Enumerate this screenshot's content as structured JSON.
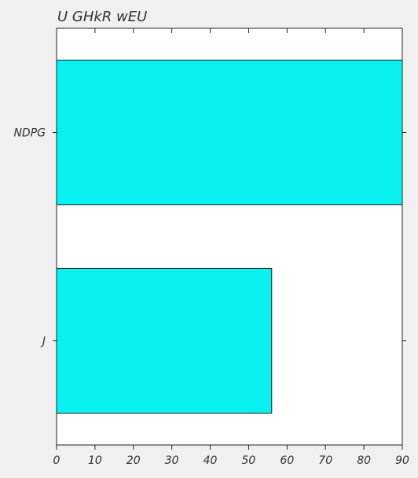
{
  "chart_data": {
    "type": "bar",
    "orientation": "horizontal",
    "title": "U GHkR  wEU",
    "xlabel": "",
    "ylabel": "",
    "categories": [
      "NDPG",
      "J"
    ],
    "values": [
      90,
      56
    ],
    "xlim": [
      0,
      90
    ],
    "xticks": [
      0,
      10,
      20,
      30,
      40,
      50,
      60,
      70,
      80,
      90
    ],
    "grid": false,
    "bar_color": "#08f0f0",
    "edge_color": "#222222",
    "background_color": "#f0f0f0",
    "plot_background_color": "#ffffff"
  }
}
